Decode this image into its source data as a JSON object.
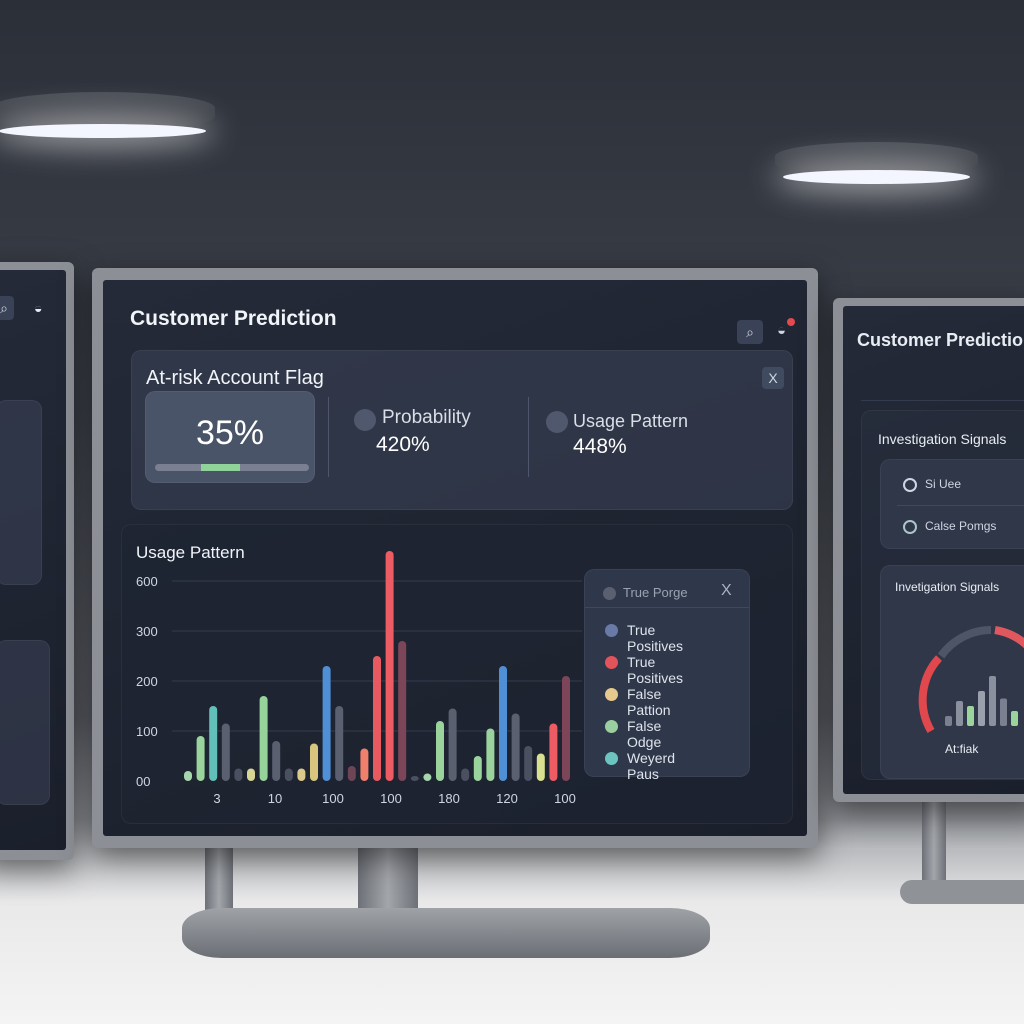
{
  "main_screen": {
    "title": "Customer Prediction",
    "icons": [
      "search-icon",
      "notification-bell-icon"
    ],
    "flag_card": {
      "title": "At-risk Account Flag",
      "main_value": "35%",
      "progress_fraction": 0.35,
      "metrics": [
        {
          "label": "Probability",
          "value": "420%"
        },
        {
          "label": "Usage Pattern",
          "value": "448%"
        }
      ],
      "close_label": "X"
    },
    "chart_card": {
      "title": "Usage Pattern",
      "legend": {
        "header": "True Porge",
        "close_label": "X",
        "items": [
          {
            "label": "True Positives",
            "color": "#6a7aa6"
          },
          {
            "label": "True Positives",
            "color": "#e2535a"
          },
          {
            "label": "False Pattion",
            "color": "#e6c98c"
          },
          {
            "label": "False Odge",
            "color": "#9ccf9f"
          },
          {
            "label": "Weyerd Paus",
            "color": "#6cc4c0"
          }
        ]
      }
    }
  },
  "chart_data": {
    "type": "bar",
    "title": "Usage Pattern",
    "y_tick_labels": [
      "00",
      "100",
      "200",
      "300",
      "600"
    ],
    "x_tick_labels": [
      "3",
      "10",
      "100",
      "100",
      "180",
      "120",
      "100"
    ],
    "grid": true,
    "legend": "right",
    "values": [
      20,
      90,
      150,
      115,
      25,
      25,
      170,
      80,
      25,
      25,
      75,
      230,
      150,
      30,
      65,
      250,
      460,
      280,
      10,
      15,
      120,
      145,
      25,
      50,
      105,
      230,
      135,
      70,
      55,
      115,
      210
    ],
    "colors": [
      "#a6d6ad",
      "#9ad39c",
      "#63c0b8",
      "#5a6070",
      "#4a5060",
      "#d8d694",
      "#95d39a",
      "#5a6070",
      "#4a5060",
      "#d9c98b",
      "#d8c67f",
      "#4f8fd6",
      "#5a6070",
      "#6e4555",
      "#f07f6c",
      "#e85a60",
      "#ec5c62",
      "#7d4658",
      "#4a5060",
      "#a6d6ad",
      "#9ad39c",
      "#5a6070",
      "#4a5060",
      "#9ad39c",
      "#9ad39c",
      "#4f8fd6",
      "#5a6070",
      "#4a5060",
      "#d9e08f",
      "#ec5c62",
      "#7d4658"
    ]
  },
  "right_screen": {
    "title": "Customer Prediction",
    "section_title": "Investigation Signals",
    "items": [
      {
        "label": "Si Uee"
      },
      {
        "label": "Calse Pomgs"
      }
    ],
    "gauge_card": {
      "title": "Invetigation Signals",
      "label": "At:fiak",
      "mini_bars": [
        20,
        50,
        40,
        70,
        100,
        55,
        30
      ]
    }
  }
}
